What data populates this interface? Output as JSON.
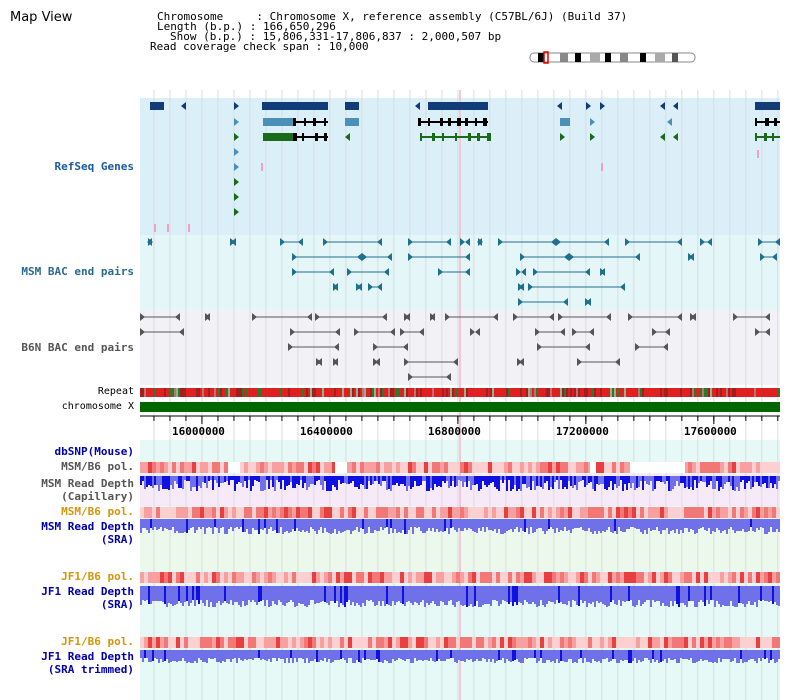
{
  "app": {
    "title": "Map View"
  },
  "info": {
    "chromosome_key": "Chromosome",
    "chromosome_value": "Chromosome X, reference assembly (C57BL/6J) (Build 37)",
    "length_key": "Length (b.p.)",
    "length_value": "166,650,296",
    "show_key": "Show (b.p.)",
    "show_value": "15,806,331-17,806,837 : 2,000,507 bp",
    "coverage_key": "Read coverage check span",
    "coverage_value": "10,000"
  },
  "tracks": {
    "refseq": {
      "label": "RefSeq Genes",
      "color": "#1a5a9a"
    },
    "msm_bac": {
      "label": "MSM BAC end pairs",
      "color": "#2a6a8a"
    },
    "b6n_bac": {
      "label": "B6N BAC end pairs",
      "color": "#555555"
    },
    "repeat": {
      "label": "Repeat"
    },
    "chromosome": {
      "label": "chromosome X",
      "color": "#006600"
    },
    "dbsnp": {
      "label": "dbSNP(Mouse)",
      "color": "#0000aa"
    },
    "msm_b6_pol_1": {
      "label": "MSM/B6 pol.",
      "color": "#555555"
    },
    "msm_depth_cap": {
      "label_1": "MSM Read Depth",
      "label_2": "(Capillary)",
      "color": "#555555"
    },
    "msm_b6_pol_2": {
      "label": "MSM/B6 pol.",
      "color": "#d4960a"
    },
    "msm_depth_sra": {
      "label_1": "MSM Read Depth",
      "label_2": "(SRA)",
      "color": "#0000aa"
    },
    "jf1_b6_pol_1": {
      "label": "JF1/B6 pol.",
      "color": "#d4960a"
    },
    "jf1_depth_sra": {
      "label_1": "JF1 Read Depth",
      "label_2": "(SRA)",
      "color": "#0000aa"
    },
    "jf1_b6_pol_2": {
      "label": "JF1/B6 pol.",
      "color": "#d4960a"
    },
    "jf1_depth_trim": {
      "label_1": "JF1 Read Depth",
      "label_2": "(SRA trimmed)",
      "color": "#0000aa"
    }
  },
  "axis": {
    "start_bp": 15806331,
    "end_bp": 17806837,
    "ticks": [
      {
        "bp": 16000000,
        "label": "16000000"
      },
      {
        "bp": 16400000,
        "label": "16400000"
      },
      {
        "bp": 16800000,
        "label": "16800000"
      },
      {
        "bp": 17200000,
        "label": "17200000"
      },
      {
        "bp": 17600000,
        "label": "17600000"
      }
    ]
  }
}
